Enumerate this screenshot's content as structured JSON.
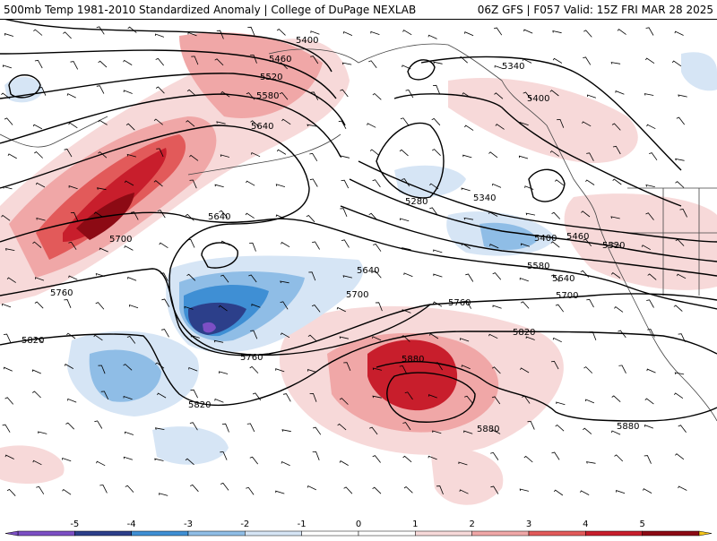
{
  "header": {
    "title": "500mb Temp 1981-2010 Standardized Anomaly | College of DuPage NEXLAB",
    "model_info": "06Z GFS | F057 Valid: 15Z FRI MAR 28 2025"
  },
  "colors": {
    "anom_-5": "#7c4fc4",
    "anom_-4": "#2c3f8a",
    "anom_-3": "#3f8fd4",
    "anom_-2": "#8fbde6",
    "anom_-1": "#d6e5f5",
    "anom_1": "#f7d9d9",
    "anom_2": "#f0a7a7",
    "anom_3": "#e25a5a",
    "anom_4": "#c81e2c",
    "anom_5": "#8c0a14",
    "anom_max": "#f5c518",
    "contour": "#000000",
    "coastline": "#444444"
  },
  "colorbar": {
    "ticks": [
      "-5",
      "-4",
      "-3",
      "-2",
      "-1",
      "0",
      "1",
      "2",
      "3",
      "4",
      "5"
    ]
  },
  "contour_labels": [
    {
      "text": "5400"
    },
    {
      "text": "5460"
    },
    {
      "text": "5520"
    },
    {
      "text": "5580"
    },
    {
      "text": "5640"
    },
    {
      "text": "5640"
    },
    {
      "text": "5700"
    },
    {
      "text": "5760"
    },
    {
      "text": "5820"
    },
    {
      "text": "5760"
    },
    {
      "text": "5820"
    },
    {
      "text": "5340"
    },
    {
      "text": "5400"
    },
    {
      "text": "5280"
    },
    {
      "text": "5340"
    },
    {
      "text": "5400"
    },
    {
      "text": "5460"
    },
    {
      "text": "5520"
    },
    {
      "text": "5580"
    },
    {
      "text": "5640"
    },
    {
      "text": "5640"
    },
    {
      "text": "5700"
    },
    {
      "text": "5700"
    },
    {
      "text": "5760"
    },
    {
      "text": "5820"
    },
    {
      "text": "5880"
    },
    {
      "text": "5880"
    },
    {
      "text": "5880"
    }
  ]
}
